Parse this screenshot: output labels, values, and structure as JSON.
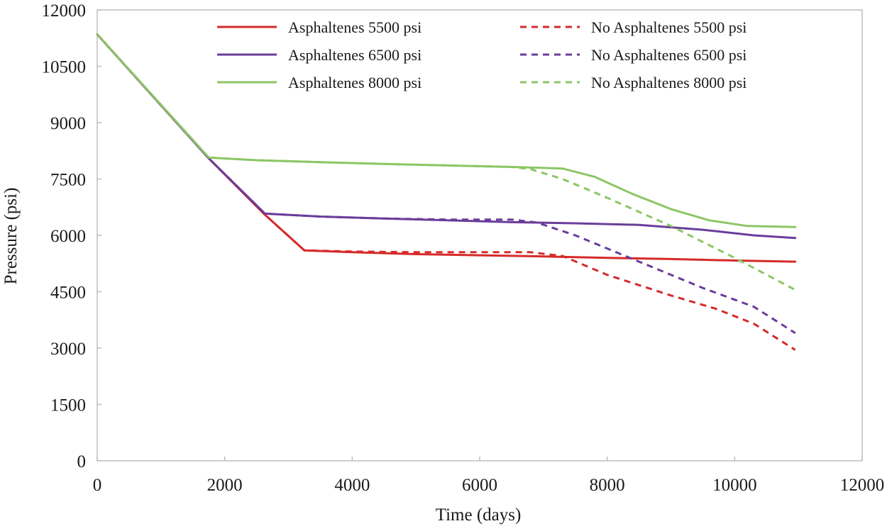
{
  "chart_data": {
    "type": "line",
    "title": "",
    "xlabel": "Time (days)",
    "ylabel": "Pressure  (psi)",
    "xlim": [
      0,
      12000
    ],
    "ylim": [
      0,
      12000
    ],
    "xticks": [
      "0",
      "2000",
      "4000",
      "6000",
      "8000",
      "10000",
      "12000"
    ],
    "yticks": [
      "0",
      "1500",
      "3000",
      "4500",
      "6000",
      "7500",
      "9000",
      "10500",
      "12000"
    ],
    "grid": false,
    "legend_position": "top",
    "series": [
      {
        "name": "Asphaltenes 5500 psi",
        "color": "#d62a2a",
        "dash": false,
        "x": [
          0,
          1750,
          2630,
          3250,
          4000,
          5000,
          6000,
          7000,
          8000,
          9000,
          10000,
          10950
        ],
        "y": [
          11350,
          8050,
          6550,
          5600,
          5550,
          5500,
          5470,
          5440,
          5400,
          5370,
          5330,
          5300
        ]
      },
      {
        "name": "No Asphaltenes 5500 psi",
        "color": "#d62a2a",
        "dash": true,
        "x": [
          0,
          1750,
          2630,
          3250,
          4000,
          5000,
          6000,
          6800,
          7300,
          8000,
          9000,
          9700,
          10300,
          10950
        ],
        "y": [
          11350,
          8050,
          6550,
          5600,
          5570,
          5550,
          5550,
          5550,
          5450,
          4950,
          4400,
          4050,
          3650,
          2950
        ]
      },
      {
        "name": "Asphaltenes 6500 psi",
        "color": "#6a3d9a",
        "dash": false,
        "x": [
          0,
          1750,
          2630,
          3500,
          4500,
          5500,
          6500,
          7500,
          8500,
          9500,
          10300,
          10950
        ],
        "y": [
          11350,
          8050,
          6580,
          6500,
          6450,
          6400,
          6350,
          6320,
          6280,
          6150,
          6000,
          5930
        ]
      },
      {
        "name": "No Asphaltenes 6500 psi",
        "color": "#6a3d9a",
        "dash": true,
        "x": [
          0,
          1750,
          2630,
          3500,
          4500,
          5500,
          6500,
          6900,
          7500,
          8500,
          9500,
          10300,
          10950
        ],
        "y": [
          11350,
          8050,
          6580,
          6500,
          6450,
          6420,
          6420,
          6340,
          6000,
          5300,
          4600,
          4100,
          3400
        ]
      },
      {
        "name": "Asphaltenes 8000 psi",
        "color": "#8cc665",
        "dash": false,
        "x": [
          0,
          1750,
          2500,
          3500,
          4500,
          5500,
          6500,
          7300,
          7800,
          8400,
          9000,
          9600,
          10200,
          10950
        ],
        "y": [
          11350,
          8070,
          8000,
          7950,
          7900,
          7860,
          7820,
          7780,
          7560,
          7100,
          6700,
          6400,
          6250,
          6220
        ]
      },
      {
        "name": "No Asphaltenes 8000 psi",
        "color": "#8cc665",
        "dash": true,
        "x": [
          0,
          1750,
          2500,
          3500,
          4500,
          5500,
          6500,
          6800,
          7300,
          8000,
          9000,
          10000,
          10950
        ],
        "y": [
          11350,
          8070,
          8000,
          7950,
          7900,
          7860,
          7820,
          7760,
          7500,
          7000,
          6250,
          5400,
          4550
        ]
      }
    ]
  }
}
